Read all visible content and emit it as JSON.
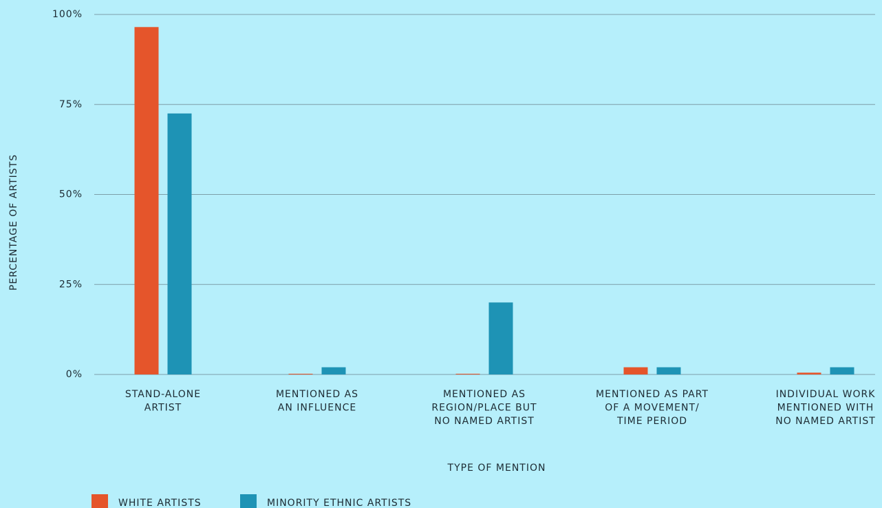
{
  "chart_data": {
    "type": "bar",
    "x_label": "TYPE OF MENTION",
    "y_label": "PERCENTAGE OF ARTISTS",
    "categories": [
      [
        "STAND-ALONE",
        "ARTIST"
      ],
      [
        "MENTIONED AS",
        "AN INFLUENCE"
      ],
      [
        "MENTIONED AS",
        "REGION/PLACE BUT",
        "NO NAMED ARTIST"
      ],
      [
        "MENTIONED AS PART",
        "OF A MOVEMENT/",
        "TIME PERIOD"
      ],
      [
        "INDIVIDUAL WORK",
        "MENTIONED WITH",
        "NO NAMED ARTIST"
      ]
    ],
    "series": [
      {
        "name": "WHITE ARTISTS",
        "color": "#e5552b",
        "values": [
          96.5,
          0.2,
          0.2,
          2,
          0.5
        ]
      },
      {
        "name": "MINORITY ETHNIC ARTISTS",
        "color": "#1e93b5",
        "values": [
          72.5,
          2,
          20,
          2,
          2
        ]
      }
    ],
    "ylim": [
      0,
      100
    ],
    "yticks": [
      {
        "value": 0,
        "label": "0%"
      },
      {
        "value": 25,
        "label": "25%"
      },
      {
        "value": 50,
        "label": "50%"
      },
      {
        "value": 75,
        "label": "75%"
      },
      {
        "value": 100,
        "label": "100%"
      }
    ],
    "grid": true,
    "legend": "bottom"
  }
}
